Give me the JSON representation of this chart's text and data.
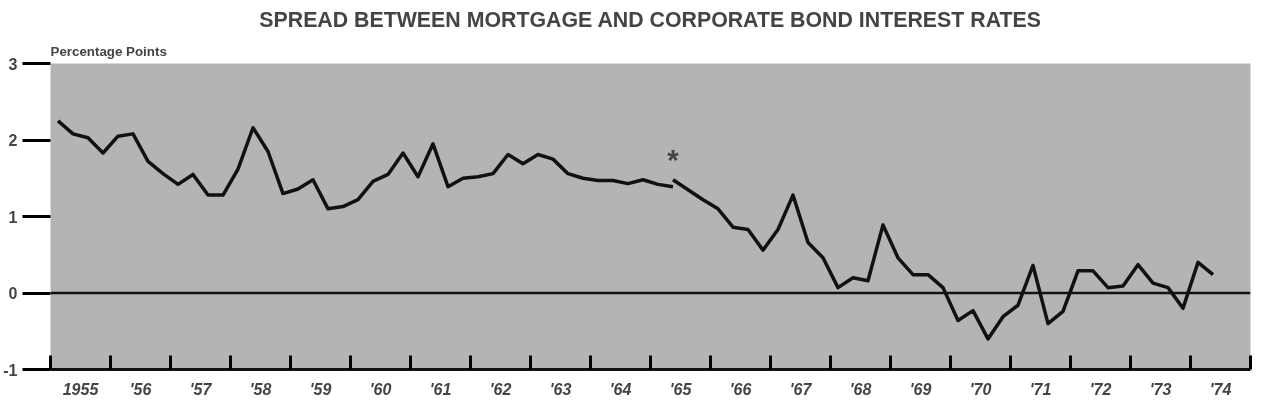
{
  "chart_data": {
    "type": "line",
    "title": "SPREAD BETWEEN MORTGAGE AND CORPORATE BOND INTEREST RATES",
    "ylabel": "Percentage Points",
    "xlim": [
      1954.5,
      1974.5
    ],
    "ylim": [
      -1,
      3
    ],
    "yticks": [
      -1,
      0,
      1,
      2,
      3
    ],
    "xticks": [
      1955,
      {
        "value": 1956,
        "label": "'56"
      },
      {
        "value": 1957,
        "label": "'57"
      },
      {
        "value": 1958,
        "label": "'58"
      },
      {
        "value": 1959,
        "label": "'59"
      },
      {
        "value": 1960,
        "label": "'60"
      },
      {
        "value": 1961,
        "label": "'61"
      },
      {
        "value": 1962,
        "label": "'62"
      },
      {
        "value": 1963,
        "label": "'63"
      },
      {
        "value": 1964,
        "label": "'64"
      },
      {
        "value": 1965,
        "label": "'65"
      },
      {
        "value": 1966,
        "label": "'66"
      },
      {
        "value": 1967,
        "label": "'67"
      },
      {
        "value": 1968,
        "label": "'68"
      },
      {
        "value": 1969,
        "label": "'69"
      },
      {
        "value": 1970,
        "label": "'70"
      },
      {
        "value": 1971,
        "label": "'71"
      },
      {
        "value": 1972,
        "label": "'72"
      },
      {
        "value": 1973,
        "label": "'73"
      },
      {
        "value": 1974,
        "label": "'74"
      },
      {
        "value": 1954.5,
        "label": null
      },
      {
        "value": 1955.5,
        "label": null
      },
      {
        "value": 1956.5,
        "label": null
      },
      {
        "value": 1957.5,
        "label": null
      },
      {
        "value": 1958.5,
        "label": null
      },
      {
        "value": 1959.5,
        "label": null
      },
      {
        "value": 1960.5,
        "label": null
      },
      {
        "value": 1961.5,
        "label": null
      },
      {
        "value": 1962.5,
        "label": null
      },
      {
        "value": 1963.5,
        "label": null
      },
      {
        "value": 1964.5,
        "label": null
      },
      {
        "value": 1965.5,
        "label": null
      },
      {
        "value": 1966.5,
        "label": null
      },
      {
        "value": 1967.5,
        "label": null
      },
      {
        "value": 1968.5,
        "label": null
      },
      {
        "value": 1969.5,
        "label": null
      },
      {
        "value": 1970.5,
        "label": null
      },
      {
        "value": 1971.5,
        "label": null
      },
      {
        "value": 1972.5,
        "label": null
      },
      {
        "value": 1973.5,
        "label": null
      },
      {
        "value": 1974.5,
        "label": null
      }
    ],
    "series": [
      {
        "color": "#111111",
        "x": [
          1954.625,
          1954.875,
          1955.125,
          1955.375,
          1955.625,
          1955.875,
          1956.125,
          1956.375,
          1956.625,
          1956.875,
          1957.125,
          1957.375,
          1957.625,
          1957.875,
          1958.125,
          1958.375,
          1958.625,
          1958.875,
          1959.125,
          1959.375,
          1959.625,
          1959.875,
          1960.125,
          1960.375,
          1960.625,
          1960.875,
          1961.125,
          1961.375,
          1961.625,
          1961.875,
          1962.125,
          1962.375,
          1962.625,
          1962.875,
          1963.125,
          1963.375,
          1963.625,
          1963.875,
          1964.125,
          1964.375,
          1964.625,
          1964.875
        ],
        "values": [
          2.25,
          2.08,
          2.03,
          1.83,
          2.05,
          2.08,
          1.72,
          1.56,
          1.42,
          1.55,
          1.28,
          1.28,
          1.62,
          2.16,
          1.85,
          1.3,
          1.36,
          1.48,
          1.1,
          1.13,
          1.22,
          1.46,
          1.55,
          1.83,
          1.52,
          1.95,
          1.39,
          1.5,
          1.52,
          1.56,
          1.81,
          1.69,
          1.81,
          1.75,
          1.56,
          1.5,
          1.47,
          1.47,
          1.43,
          1.48,
          1.42,
          1.39
        ]
      },
      {
        "color": "#111111",
        "x": [
          1964.875,
          1965.125,
          1965.375,
          1965.625,
          1965.875,
          1966.125,
          1966.375,
          1966.625,
          1966.875,
          1967.125,
          1967.375,
          1967.625,
          1967.875,
          1968.125,
          1968.375,
          1968.625,
          1968.875,
          1969.125,
          1969.375,
          1969.625,
          1969.875,
          1970.125,
          1970.375,
          1970.625,
          1970.875,
          1971.125,
          1971.375,
          1971.625,
          1971.875,
          1972.125,
          1972.375,
          1972.625,
          1972.875,
          1973.125,
          1973.375,
          1973.625,
          1973.875
        ],
        "values": [
          1.48,
          1.35,
          1.22,
          1.1,
          0.86,
          0.83,
          0.56,
          0.83,
          1.28,
          0.66,
          0.46,
          0.07,
          0.2,
          0.16,
          0.89,
          0.46,
          0.24,
          0.24,
          0.07,
          -0.36,
          -0.23,
          -0.6,
          -0.31,
          -0.16,
          0.36,
          -0.4,
          -0.24,
          0.29,
          0.29,
          0.07,
          0.09,
          0.37,
          0.13,
          0.07,
          -0.2,
          0.4,
          0.24
        ]
      }
    ],
    "ref_lines": [
      {
        "axis": "y",
        "value": 0,
        "color": "#111111"
      }
    ],
    "annotations": [
      "*"
    ],
    "line_style": "solid",
    "marker": "none",
    "grid": false
  }
}
